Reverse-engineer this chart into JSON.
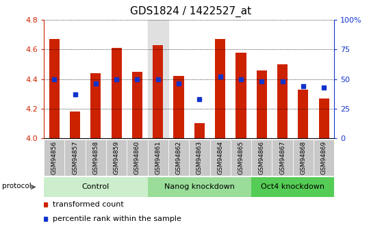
{
  "title": "GDS1824 / 1422527_at",
  "samples": [
    "GSM94856",
    "GSM94857",
    "GSM94858",
    "GSM94859",
    "GSM94860",
    "GSM94861",
    "GSM94862",
    "GSM94863",
    "GSM94864",
    "GSM94865",
    "GSM94866",
    "GSM94867",
    "GSM94868",
    "GSM94869"
  ],
  "transformed_count": [
    4.67,
    4.18,
    4.44,
    4.61,
    4.45,
    4.63,
    4.42,
    4.1,
    4.67,
    4.58,
    4.46,
    4.5,
    4.33,
    4.27
  ],
  "percentile_rank_pct": [
    50,
    37,
    46,
    50,
    50,
    50,
    46,
    33,
    52,
    50,
    48,
    48,
    44,
    43
  ],
  "ylim": [
    4.0,
    4.8
  ],
  "yticks": [
    4.0,
    4.2,
    4.4,
    4.6,
    4.8
  ],
  "y2lim": [
    0,
    100
  ],
  "y2ticks": [
    0,
    25,
    50,
    75,
    100
  ],
  "y2ticklabels": [
    "0",
    "25",
    "50",
    "75",
    "100%"
  ],
  "bar_color": "#cc2200",
  "dot_color": "#1133cc",
  "bar_bottom": 4.0,
  "groups": [
    {
      "label": "Control",
      "start": 0,
      "end": 4,
      "color": "#cceecc"
    },
    {
      "label": "Nanog knockdown",
      "start": 5,
      "end": 9,
      "color": "#99dd99"
    },
    {
      "label": "Oct4 knockdown",
      "start": 10,
      "end": 13,
      "color": "#55cc55"
    }
  ],
  "protocol_label": "protocol",
  "legend_items": [
    {
      "label": "transformed count",
      "color": "#cc2200"
    },
    {
      "label": "percentile rank within the sample",
      "color": "#1133cc"
    }
  ],
  "title_fontsize": 11,
  "axis_color_left": "#cc2200",
  "axis_color_right": "#1133cc",
  "gsm94861_bg": "#e0e0e0",
  "tick_bg_color": "#c8c8c8"
}
